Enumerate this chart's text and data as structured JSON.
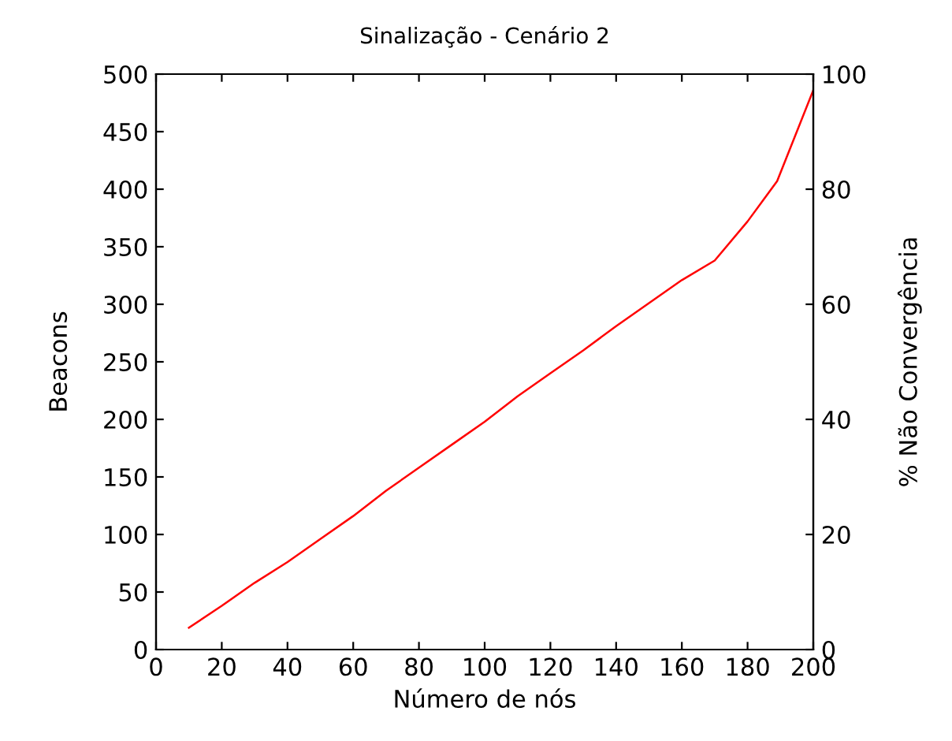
{
  "chart_data": {
    "type": "line",
    "title": "Sinalização - Cenário 2",
    "xlabel": "Número de nós",
    "ylabel": "Beacons",
    "y2label": "% Não Convergência",
    "x": [
      10,
      20,
      30,
      40,
      50,
      60,
      70,
      80,
      90,
      100,
      110,
      120,
      130,
      140,
      150,
      160,
      170,
      180,
      189,
      200
    ],
    "series": [
      {
        "color": "#ff0000",
        "values": [
          19,
          38,
          58,
          76,
          96,
          116,
          138,
          158,
          178,
          198,
          220,
          240,
          260,
          281,
          301,
          321,
          338,
          372,
          407,
          486
        ]
      }
    ],
    "xlim": [
      0,
      200
    ],
    "xticks": [
      0,
      20,
      40,
      60,
      80,
      100,
      120,
      140,
      160,
      180,
      200
    ],
    "ylim": [
      0,
      500
    ],
    "yticks": [
      0,
      50,
      100,
      150,
      200,
      250,
      300,
      350,
      400,
      450,
      500
    ],
    "y2lim": [
      0,
      100
    ],
    "y2ticks": [
      0,
      20,
      40,
      60,
      80,
      100
    ],
    "grid": false,
    "legend": false,
    "marker": "none",
    "line_style": "solid"
  }
}
